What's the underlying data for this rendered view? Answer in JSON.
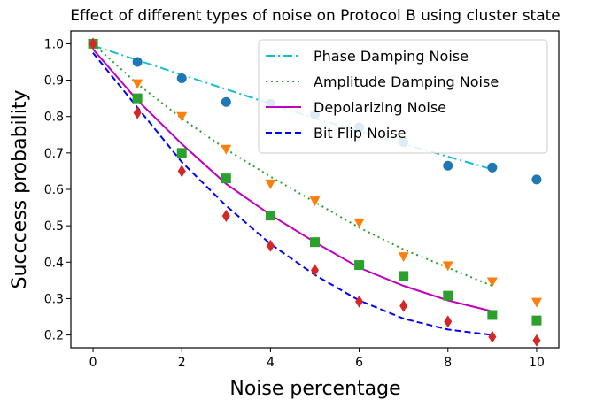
{
  "chart_data": {
    "type": "line",
    "title": "Effect of different types of noise on Protocol B using cluster state",
    "xlabel": "Noise percentage",
    "ylabel": "Succcess probability",
    "xlim": [
      -0.5,
      10.5
    ],
    "ylim": [
      0.165,
      1.035
    ],
    "xticks": [
      0,
      2,
      4,
      6,
      8,
      10
    ],
    "yticks": [
      0.2,
      0.3,
      0.4,
      0.5,
      0.6,
      0.7,
      0.8,
      0.9,
      1.0
    ],
    "ytick_labels": [
      "0.2",
      "0.3",
      "0.4",
      "0.5",
      "0.6",
      "0.7",
      "0.8",
      "0.9",
      "1.0"
    ],
    "grid": false,
    "legend_position": "top-right",
    "series": [
      {
        "name": "Phase Damping Noise",
        "color": "#17becf",
        "line_style": "dashdot",
        "marker": "circle",
        "marker_color": "#1f77b4",
        "points": {
          "x": [
            0,
            1,
            2,
            3,
            4,
            5,
            6,
            7,
            8,
            9,
            10
          ],
          "y": [
            1.0,
            0.95,
            0.905,
            0.84,
            0.835,
            0.805,
            0.77,
            0.73,
            0.665,
            0.66,
            0.627
          ]
        },
        "fit": {
          "x": [
            0,
            1,
            2,
            3,
            4,
            5,
            6,
            7,
            8,
            9
          ],
          "y": [
            0.995,
            0.955,
            0.915,
            0.875,
            0.835,
            0.795,
            0.76,
            0.725,
            0.69,
            0.655
          ]
        }
      },
      {
        "name": "Amplitude Damping Noise",
        "color": "#2ca02c",
        "line_style": "dotted",
        "marker": "triangle-down",
        "marker_color": "#ff7f0e",
        "points": {
          "x": [
            0,
            1,
            2,
            3,
            4,
            5,
            6,
            7,
            8,
            9,
            10
          ],
          "y": [
            1.0,
            0.89,
            0.8,
            0.71,
            0.615,
            0.568,
            0.508,
            0.415,
            0.39,
            0.346,
            0.29
          ]
        },
        "fit": {
          "x": [
            0,
            1,
            2,
            3,
            4,
            5,
            6,
            7,
            8,
            9
          ],
          "y": [
            1.0,
            0.89,
            0.795,
            0.71,
            0.635,
            0.565,
            0.495,
            0.435,
            0.385,
            0.335
          ]
        }
      },
      {
        "name": "Depolarizing Noise",
        "color": "#bf00bf",
        "line_style": "solid",
        "marker": "square",
        "marker_color": "#2ca02c",
        "points": {
          "x": [
            0,
            1,
            2,
            3,
            4,
            5,
            6,
            7,
            8,
            9,
            10
          ],
          "y": [
            1.0,
            0.85,
            0.7,
            0.63,
            0.528,
            0.455,
            0.392,
            0.362,
            0.308,
            0.255,
            0.24
          ]
        },
        "fit": {
          "x": [
            0,
            1,
            2,
            3,
            4,
            5,
            6,
            7,
            8,
            9
          ],
          "y": [
            0.985,
            0.845,
            0.725,
            0.615,
            0.53,
            0.455,
            0.385,
            0.335,
            0.295,
            0.265
          ]
        }
      },
      {
        "name": "Bit Flip Noise",
        "color": "#0000ff",
        "line_style": "dashed",
        "marker": "diamond",
        "marker_color": "#d62728",
        "points": {
          "x": [
            0,
            1,
            2,
            3,
            4,
            5,
            6,
            7,
            8,
            9,
            10
          ],
          "y": [
            1.0,
            0.81,
            0.65,
            0.527,
            0.445,
            0.378,
            0.292,
            0.28,
            0.237,
            0.195,
            0.185
          ]
        },
        "fit": {
          "x": [
            0,
            1,
            2,
            3,
            4,
            5,
            6,
            7,
            8,
            9
          ],
          "y": [
            0.975,
            0.825,
            0.675,
            0.555,
            0.45,
            0.365,
            0.295,
            0.245,
            0.215,
            0.2
          ]
        }
      }
    ]
  }
}
